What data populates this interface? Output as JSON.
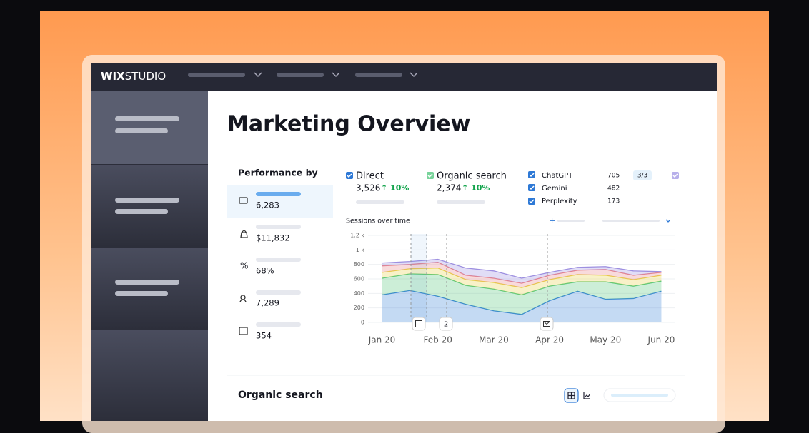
{
  "brand": {
    "bold": "WIX",
    "light": "STUDIO"
  },
  "title": "Marketing Overview",
  "performance": {
    "title": "Performance by",
    "values": [
      "6,283",
      "$11,832",
      "68%",
      "7,289",
      "354"
    ]
  },
  "channels": [
    {
      "total": "3,526",
      "change": "↑ 10%"
    },
    {
      "total": "2,374",
      "change": "↑ 10%"
    }
  ],
  "ai_counts": [
    "705",
    "482",
    "173"
  ],
  "ai_selected": "3/3",
  "section": "Organic search",
  "chart_data": {
    "type": "area",
    "stacked": true,
    "title": "Sessions over time",
    "categories": [
      "Jan 20",
      null,
      "Feb 20",
      null,
      "Mar 20",
      null,
      "Apr 20",
      null,
      "May 20",
      null,
      "Jun 20"
    ],
    "series": [
      {
        "name": "Direct",
        "color": "#3b86d6",
        "values": [
          380,
          440,
          360,
          250,
          160,
          110,
          300,
          430,
          320,
          330,
          430
        ]
      },
      {
        "name": "Organic search",
        "color": "#55c77a",
        "values": [
          230,
          230,
          300,
          260,
          300,
          270,
          200,
          130,
          240,
          170,
          140
        ]
      },
      {
        "name": "ChatGPT",
        "color": "#e8cf4a",
        "values": [
          80,
          70,
          90,
          80,
          90,
          100,
          90,
          100,
          90,
          90,
          80
        ]
      },
      {
        "name": "Gemini",
        "color": "#e8838b",
        "values": [
          90,
          60,
          80,
          60,
          60,
          60,
          60,
          60,
          80,
          60,
          40
        ]
      },
      {
        "name": "Perplexity",
        "color": "#9d8fe0",
        "values": [
          40,
          40,
          40,
          100,
          100,
          70,
          40,
          40,
          40,
          60,
          10
        ]
      }
    ],
    "ylim": [
      0,
      1200
    ],
    "yticks": [
      0,
      200,
      400,
      600,
      800,
      {
        "value": 1000,
        "label": "1 k"
      },
      {
        "value": 1200,
        "label": "1.2 k"
      }
    ],
    "grid": true,
    "annotation": "2"
  }
}
